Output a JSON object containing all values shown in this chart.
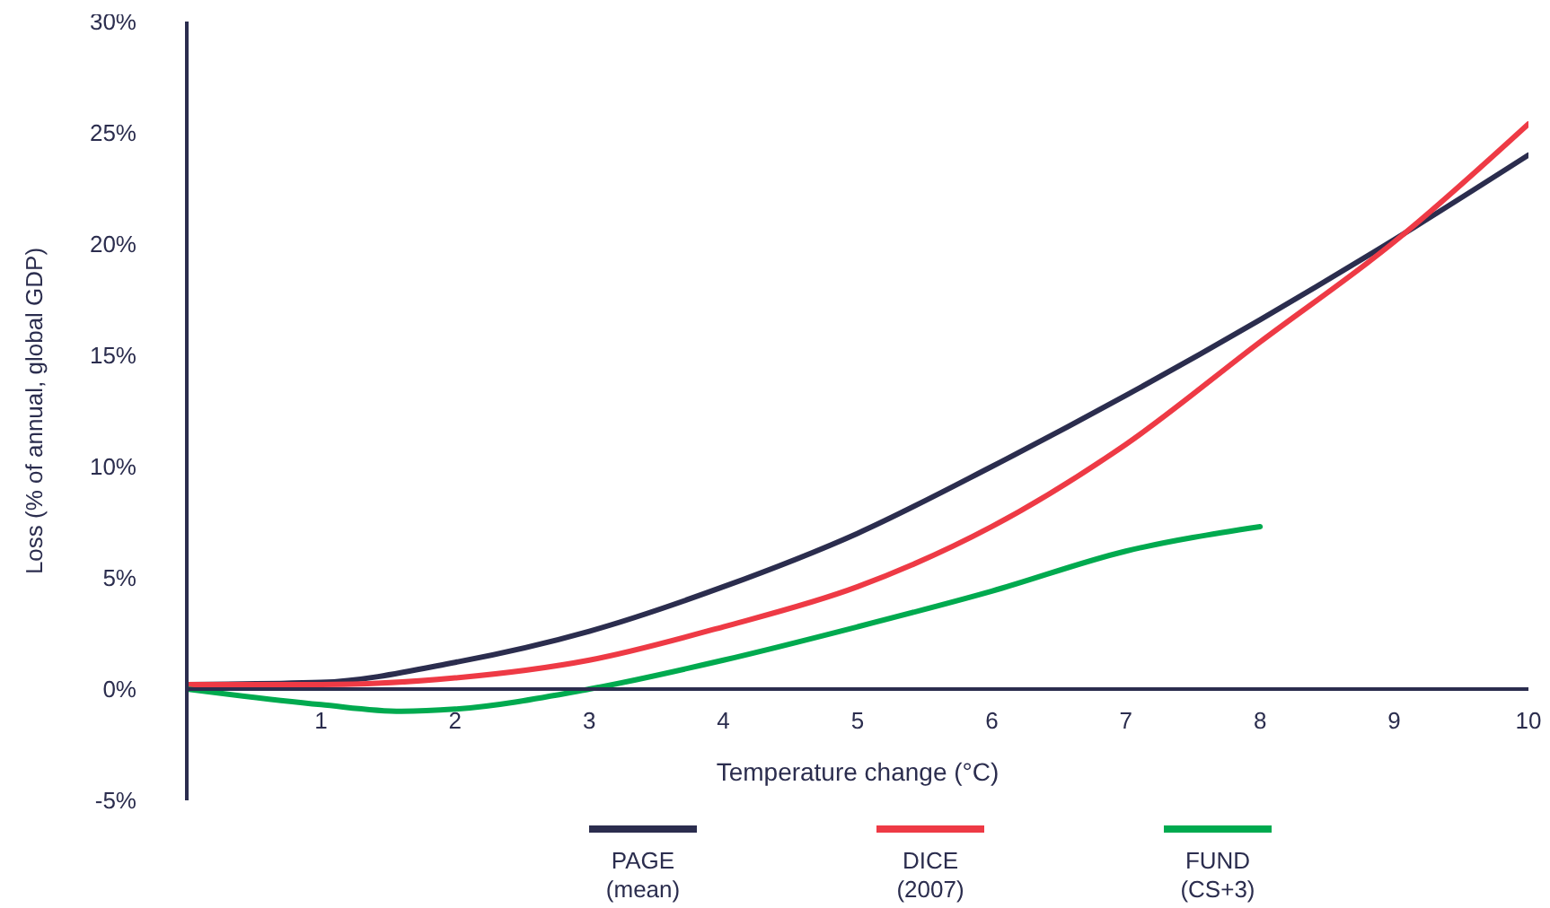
{
  "chart_data": {
    "type": "line",
    "xlabel": "Temperature change (°C)",
    "ylabel": "Loss (% of annual, global GDP)",
    "xlim": [
      0,
      10
    ],
    "xticks": [
      1,
      2,
      3,
      4,
      5,
      6,
      7,
      8,
      9,
      10
    ],
    "ylim": [
      -5,
      30
    ],
    "yticks": [
      {
        "value": -5,
        "label": "-5%"
      },
      {
        "value": 0,
        "label": "0%"
      },
      {
        "value": 5,
        "label": "5%"
      },
      {
        "value": 10,
        "label": "10%"
      },
      {
        "value": 15,
        "label": "15%"
      },
      {
        "value": 20,
        "label": "20%"
      },
      {
        "value": 25,
        "label": "25%"
      },
      {
        "value": 30,
        "label": "30%"
      }
    ],
    "grid": false,
    "legend": "bottom",
    "marker": "none",
    "line_style": "solid",
    "series": [
      {
        "name": "PAGE (mean)",
        "color": "#2b2d4e",
        "x": [
          0,
          1,
          2,
          3,
          4,
          5,
          6,
          7,
          8,
          9,
          10
        ],
        "values": [
          0.2,
          0.3,
          1.2,
          2.6,
          4.6,
          7.0,
          10.0,
          13.2,
          16.6,
          20.2,
          24.0
        ]
      },
      {
        "name": "DICE (2007)",
        "color": "#ee3a45",
        "x": [
          0,
          1,
          2,
          3,
          4,
          5,
          6,
          7,
          8,
          9,
          10
        ],
        "values": [
          0.2,
          0.2,
          0.5,
          1.3,
          2.8,
          4.6,
          7.3,
          11.0,
          15.6,
          20.1,
          25.4
        ]
      },
      {
        "name": "FUND (CS+3)",
        "color": "#00aa4f",
        "x": [
          0,
          1,
          1.6,
          2,
          3,
          4,
          5,
          6,
          7,
          8
        ],
        "values": [
          0,
          -0.7,
          -1.0,
          -0.9,
          0,
          1.3,
          2.8,
          4.4,
          6.2,
          7.3
        ]
      }
    ]
  }
}
